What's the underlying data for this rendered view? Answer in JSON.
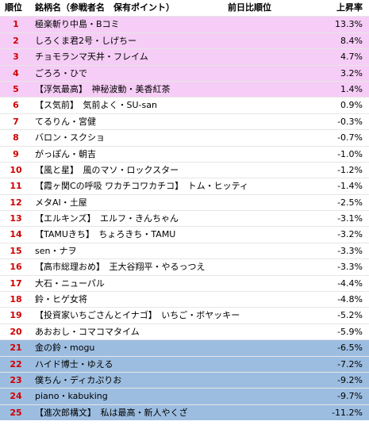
{
  "header": {
    "rank": "順位",
    "name": "銘柄名（参戦者名　保有ポイント）",
    "prev": "前日比順位",
    "rate": "上昇率"
  },
  "rows": [
    {
      "rank": "1",
      "name": "極楽斬り中島・Bコミ",
      "rate": "13.3%",
      "band": "pink"
    },
    {
      "rank": "2",
      "name": "しろくま君2号・しげちー",
      "rate": "8.4%",
      "band": "pink"
    },
    {
      "rank": "3",
      "name": "チョモランマ天井・フレイム",
      "rate": "4.7%",
      "band": "pink"
    },
    {
      "rank": "4",
      "name": "ごろろ・ひで",
      "rate": "3.2%",
      "band": "pink"
    },
    {
      "rank": "5",
      "name": "【浮気最高】　神秘波動・美香紅茶",
      "rate": "1.4%",
      "band": "pink"
    },
    {
      "rank": "6",
      "name": "【ス気前】　気前よく・SU-san",
      "rate": "0.9%",
      "band": "none"
    },
    {
      "rank": "7",
      "name": "てるりん・宮健",
      "rate": "-0.3%",
      "band": "none"
    },
    {
      "rank": "8",
      "name": "バロン・スクショ",
      "rate": "-0.7%",
      "band": "none"
    },
    {
      "rank": "9",
      "name": "がっぽん・朝吉",
      "rate": "-1.0%",
      "band": "none"
    },
    {
      "rank": "10",
      "name": "【風と星】　風のマソ・ロックスター",
      "rate": "-1.2%",
      "band": "none"
    },
    {
      "rank": "11",
      "name": "【霞ヶ関Cの呼吸 ワカチコワカチコ】　トム・ヒッティ",
      "rate": "-1.4%",
      "band": "none"
    },
    {
      "rank": "12",
      "name": "メタAI・土屋",
      "rate": "-2.5%",
      "band": "none"
    },
    {
      "rank": "13",
      "name": "【エルキンズ】　エルフ・きんちゃん",
      "rate": "-3.1%",
      "band": "none"
    },
    {
      "rank": "14",
      "name": "【TAMUきち】　ちょろきち・TAMU",
      "rate": "-3.2%",
      "band": "none"
    },
    {
      "rank": "15",
      "name": "sen・ナヲ",
      "rate": "-3.3%",
      "band": "none"
    },
    {
      "rank": "16",
      "name": "【高市総理おめ】　王大谷翔平・やるっつえ",
      "rate": "-3.3%",
      "band": "none"
    },
    {
      "rank": "17",
      "name": "大石・ニューパル",
      "rate": "-4.4%",
      "band": "none"
    },
    {
      "rank": "18",
      "name": "鈴・ヒゲ女将",
      "rate": "-4.8%",
      "band": "none"
    },
    {
      "rank": "19",
      "name": "【投資家いちごさんとイナゴ】　いちご・ボヤッキー",
      "rate": "-5.2%",
      "band": "none"
    },
    {
      "rank": "20",
      "name": "あおおし・コマコマタイム",
      "rate": "-5.9%",
      "band": "none"
    },
    {
      "rank": "21",
      "name": "金の鈴・mogu",
      "rate": "-6.5%",
      "band": "blue"
    },
    {
      "rank": "22",
      "name": "ハイド博士・ゆえる",
      "rate": "-7.2%",
      "band": "blue"
    },
    {
      "rank": "23",
      "name": "僕ちん・ディカぷりお",
      "rate": "-9.2%",
      "band": "blue"
    },
    {
      "rank": "24",
      "name": "piano・kabuking",
      "rate": "-9.7%",
      "band": "blue"
    },
    {
      "rank": "25",
      "name": "【進次郎構文】　私は最高・新人やくざ",
      "rate": "-11.2%",
      "band": "blue"
    }
  ]
}
